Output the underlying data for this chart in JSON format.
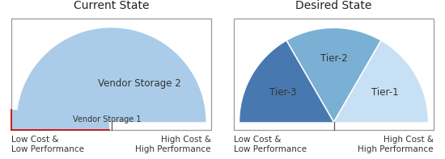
{
  "left_title": "Current State",
  "right_title": "Desired State",
  "left_xlabel_left": "Low Cost &\nLow Performance",
  "left_xlabel_right": "High Cost &\nHigh Performance",
  "right_xlabel_left": "Low Cost &\nLow Performance",
  "right_xlabel_right": "High Cost &\nHigh Performance",
  "vendor2_color": "#aacce8",
  "vendor1_color": "#aacce8",
  "vendor1_edge_color": "#cc1111",
  "tier1_color": "#c8e0f4",
  "tier2_color": "#7ab0d4",
  "tier3_color": "#4878b0",
  "background_color": "#ffffff",
  "box_edge_color": "#999999",
  "divider_color": "#555555",
  "title_fontsize": 10,
  "label_fontsize": 7.5,
  "sector_fontsize": 8.5,
  "vendor2_label": "Vendor Storage 2",
  "vendor1_label": "Vendor Storage 1",
  "tier1_label": "Tier-1",
  "tier2_label": "Tier-2",
  "tier3_label": "Tier-3",
  "tier1_angles": [
    0,
    60
  ],
  "tier2_angles": [
    60,
    120
  ],
  "tier3_angles": [
    120,
    180
  ]
}
